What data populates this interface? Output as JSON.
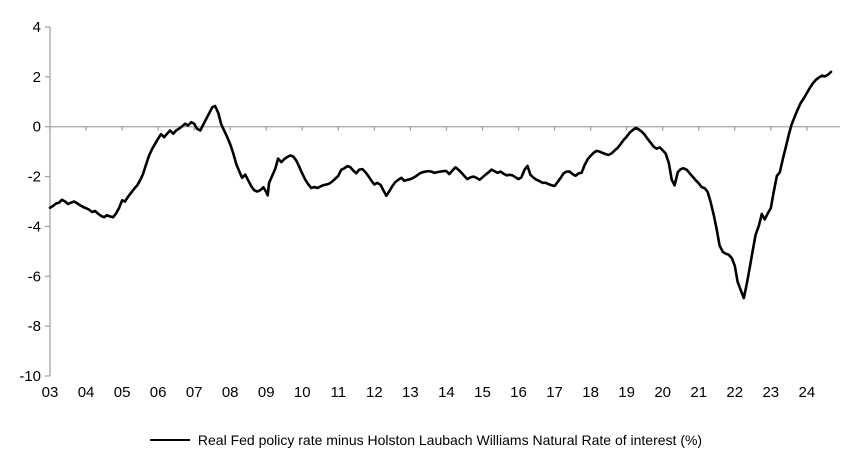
{
  "figure": {
    "background": "#ffffff",
    "legend": {
      "label": "Real Fed policy rate minus Holston Laubach Williams Natural Rate of interest (%)",
      "swatch_color": "#000000"
    }
  },
  "chart_data": {
    "type": "line",
    "title": "",
    "xlabel": "",
    "ylabel": "",
    "xlim": [
      2003,
      2024.92
    ],
    "ylim": [
      -10,
      4
    ],
    "y_ticks": [
      4,
      2,
      0,
      -2,
      -4,
      -6,
      -8,
      -10
    ],
    "x_tick_years": [
      2003,
      2004,
      2005,
      2006,
      2007,
      2008,
      2009,
      2010,
      2011,
      2012,
      2013,
      2014,
      2015,
      2016,
      2017,
      2018,
      2019,
      2020,
      2021,
      2022,
      2023,
      2024
    ],
    "x_tick_labels": [
      "03",
      "04",
      "05",
      "06",
      "07",
      "08",
      "09",
      "10",
      "11",
      "12",
      "13",
      "14",
      "15",
      "16",
      "17",
      "18",
      "19",
      "20",
      "21",
      "22",
      "23",
      "24"
    ],
    "grid": false,
    "zero_line": true,
    "axis_color": "#a6a6a6",
    "label_color": "#000000",
    "line_color": "#000000",
    "line_width": 2.6,
    "legend_position": "bottom-center",
    "series": [
      {
        "name": "Real Fed policy rate minus Holston Laubach Williams Natural Rate of interest (%)",
        "color": "#000000",
        "points": [
          [
            2003.0,
            -3.25
          ],
          [
            2003.08,
            -3.18
          ],
          [
            2003.17,
            -3.08
          ],
          [
            2003.25,
            -3.05
          ],
          [
            2003.33,
            -2.93
          ],
          [
            2003.42,
            -3.0
          ],
          [
            2003.5,
            -3.1
          ],
          [
            2003.58,
            -3.05
          ],
          [
            2003.67,
            -3.0
          ],
          [
            2003.75,
            -3.07
          ],
          [
            2003.83,
            -3.15
          ],
          [
            2003.92,
            -3.22
          ],
          [
            2004.0,
            -3.27
          ],
          [
            2004.08,
            -3.32
          ],
          [
            2004.17,
            -3.42
          ],
          [
            2004.25,
            -3.38
          ],
          [
            2004.33,
            -3.48
          ],
          [
            2004.42,
            -3.58
          ],
          [
            2004.5,
            -3.63
          ],
          [
            2004.58,
            -3.55
          ],
          [
            2004.67,
            -3.6
          ],
          [
            2004.75,
            -3.63
          ],
          [
            2004.83,
            -3.48
          ],
          [
            2004.92,
            -3.25
          ],
          [
            2005.0,
            -2.95
          ],
          [
            2005.08,
            -3.0
          ],
          [
            2005.17,
            -2.8
          ],
          [
            2005.25,
            -2.65
          ],
          [
            2005.33,
            -2.5
          ],
          [
            2005.42,
            -2.35
          ],
          [
            2005.5,
            -2.15
          ],
          [
            2005.58,
            -1.9
          ],
          [
            2005.67,
            -1.5
          ],
          [
            2005.75,
            -1.15
          ],
          [
            2005.83,
            -0.9
          ],
          [
            2005.92,
            -0.68
          ],
          [
            2006.0,
            -0.48
          ],
          [
            2006.08,
            -0.3
          ],
          [
            2006.17,
            -0.42
          ],
          [
            2006.25,
            -0.28
          ],
          [
            2006.33,
            -0.15
          ],
          [
            2006.42,
            -0.28
          ],
          [
            2006.5,
            -0.15
          ],
          [
            2006.58,
            -0.08
          ],
          [
            2006.67,
            0.02
          ],
          [
            2006.75,
            0.12
          ],
          [
            2006.83,
            0.05
          ],
          [
            2006.92,
            0.18
          ],
          [
            2007.0,
            0.12
          ],
          [
            2007.08,
            -0.08
          ],
          [
            2007.17,
            -0.15
          ],
          [
            2007.25,
            0.08
          ],
          [
            2007.33,
            0.3
          ],
          [
            2007.42,
            0.55
          ],
          [
            2007.5,
            0.78
          ],
          [
            2007.58,
            0.83
          ],
          [
            2007.67,
            0.55
          ],
          [
            2007.75,
            0.1
          ],
          [
            2007.83,
            -0.15
          ],
          [
            2007.92,
            -0.42
          ],
          [
            2008.0,
            -0.7
          ],
          [
            2008.08,
            -1.05
          ],
          [
            2008.17,
            -1.5
          ],
          [
            2008.25,
            -1.78
          ],
          [
            2008.33,
            -2.05
          ],
          [
            2008.42,
            -1.92
          ],
          [
            2008.5,
            -2.15
          ],
          [
            2008.58,
            -2.38
          ],
          [
            2008.67,
            -2.55
          ],
          [
            2008.75,
            -2.6
          ],
          [
            2008.83,
            -2.55
          ],
          [
            2008.92,
            -2.43
          ],
          [
            2009.0,
            -2.62
          ],
          [
            2009.04,
            -2.75
          ],
          [
            2009.08,
            -2.25
          ],
          [
            2009.17,
            -1.95
          ],
          [
            2009.25,
            -1.68
          ],
          [
            2009.33,
            -1.28
          ],
          [
            2009.42,
            -1.42
          ],
          [
            2009.5,
            -1.3
          ],
          [
            2009.58,
            -1.22
          ],
          [
            2009.67,
            -1.15
          ],
          [
            2009.75,
            -1.2
          ],
          [
            2009.83,
            -1.35
          ],
          [
            2009.92,
            -1.62
          ],
          [
            2010.0,
            -1.88
          ],
          [
            2010.08,
            -2.12
          ],
          [
            2010.17,
            -2.32
          ],
          [
            2010.25,
            -2.46
          ],
          [
            2010.33,
            -2.42
          ],
          [
            2010.42,
            -2.46
          ],
          [
            2010.5,
            -2.4
          ],
          [
            2010.58,
            -2.35
          ],
          [
            2010.67,
            -2.32
          ],
          [
            2010.75,
            -2.28
          ],
          [
            2010.83,
            -2.2
          ],
          [
            2010.92,
            -2.08
          ],
          [
            2011.0,
            -1.97
          ],
          [
            2011.08,
            -1.73
          ],
          [
            2011.17,
            -1.67
          ],
          [
            2011.25,
            -1.58
          ],
          [
            2011.33,
            -1.62
          ],
          [
            2011.42,
            -1.77
          ],
          [
            2011.5,
            -1.87
          ],
          [
            2011.58,
            -1.72
          ],
          [
            2011.67,
            -1.7
          ],
          [
            2011.75,
            -1.82
          ],
          [
            2011.83,
            -1.97
          ],
          [
            2011.92,
            -2.17
          ],
          [
            2012.0,
            -2.32
          ],
          [
            2012.08,
            -2.25
          ],
          [
            2012.17,
            -2.33
          ],
          [
            2012.25,
            -2.55
          ],
          [
            2012.33,
            -2.77
          ],
          [
            2012.42,
            -2.58
          ],
          [
            2012.5,
            -2.38
          ],
          [
            2012.58,
            -2.22
          ],
          [
            2012.67,
            -2.12
          ],
          [
            2012.75,
            -2.05
          ],
          [
            2012.83,
            -2.17
          ],
          [
            2012.92,
            -2.13
          ],
          [
            2013.0,
            -2.1
          ],
          [
            2013.08,
            -2.05
          ],
          [
            2013.17,
            -1.97
          ],
          [
            2013.25,
            -1.88
          ],
          [
            2013.33,
            -1.83
          ],
          [
            2013.42,
            -1.8
          ],
          [
            2013.5,
            -1.78
          ],
          [
            2013.58,
            -1.8
          ],
          [
            2013.67,
            -1.85
          ],
          [
            2013.75,
            -1.82
          ],
          [
            2013.83,
            -1.8
          ],
          [
            2013.92,
            -1.78
          ],
          [
            2014.0,
            -1.78
          ],
          [
            2014.08,
            -1.9
          ],
          [
            2014.17,
            -1.75
          ],
          [
            2014.25,
            -1.63
          ],
          [
            2014.33,
            -1.72
          ],
          [
            2014.42,
            -1.85
          ],
          [
            2014.5,
            -1.98
          ],
          [
            2014.58,
            -2.1
          ],
          [
            2014.67,
            -2.03
          ],
          [
            2014.75,
            -2.0
          ],
          [
            2014.83,
            -2.05
          ],
          [
            2014.92,
            -2.13
          ],
          [
            2015.0,
            -2.03
          ],
          [
            2015.08,
            -1.93
          ],
          [
            2015.17,
            -1.83
          ],
          [
            2015.25,
            -1.72
          ],
          [
            2015.33,
            -1.78
          ],
          [
            2015.42,
            -1.85
          ],
          [
            2015.5,
            -1.8
          ],
          [
            2015.58,
            -1.88
          ],
          [
            2015.67,
            -1.95
          ],
          [
            2015.75,
            -1.93
          ],
          [
            2015.83,
            -1.95
          ],
          [
            2015.92,
            -2.03
          ],
          [
            2016.0,
            -2.1
          ],
          [
            2016.08,
            -2.03
          ],
          [
            2016.17,
            -1.72
          ],
          [
            2016.25,
            -1.57
          ],
          [
            2016.33,
            -1.93
          ],
          [
            2016.42,
            -2.05
          ],
          [
            2016.5,
            -2.13
          ],
          [
            2016.58,
            -2.18
          ],
          [
            2016.67,
            -2.25
          ],
          [
            2016.75,
            -2.25
          ],
          [
            2016.83,
            -2.3
          ],
          [
            2016.92,
            -2.35
          ],
          [
            2017.0,
            -2.38
          ],
          [
            2017.08,
            -2.23
          ],
          [
            2017.17,
            -2.05
          ],
          [
            2017.25,
            -1.87
          ],
          [
            2017.33,
            -1.8
          ],
          [
            2017.42,
            -1.8
          ],
          [
            2017.5,
            -1.9
          ],
          [
            2017.58,
            -1.97
          ],
          [
            2017.67,
            -1.87
          ],
          [
            2017.75,
            -1.85
          ],
          [
            2017.83,
            -1.55
          ],
          [
            2017.92,
            -1.3
          ],
          [
            2018.0,
            -1.17
          ],
          [
            2018.08,
            -1.05
          ],
          [
            2018.17,
            -0.97
          ],
          [
            2018.25,
            -1.0
          ],
          [
            2018.33,
            -1.05
          ],
          [
            2018.42,
            -1.1
          ],
          [
            2018.5,
            -1.13
          ],
          [
            2018.58,
            -1.07
          ],
          [
            2018.67,
            -0.95
          ],
          [
            2018.75,
            -0.85
          ],
          [
            2018.83,
            -0.7
          ],
          [
            2018.92,
            -0.52
          ],
          [
            2019.0,
            -0.4
          ],
          [
            2019.08,
            -0.25
          ],
          [
            2019.17,
            -0.13
          ],
          [
            2019.25,
            -0.05
          ],
          [
            2019.33,
            -0.1
          ],
          [
            2019.42,
            -0.2
          ],
          [
            2019.5,
            -0.32
          ],
          [
            2019.58,
            -0.48
          ],
          [
            2019.67,
            -0.65
          ],
          [
            2019.75,
            -0.8
          ],
          [
            2019.83,
            -0.88
          ],
          [
            2019.92,
            -0.83
          ],
          [
            2020.0,
            -0.95
          ],
          [
            2020.08,
            -1.07
          ],
          [
            2020.17,
            -1.45
          ],
          [
            2020.25,
            -2.12
          ],
          [
            2020.33,
            -2.35
          ],
          [
            2020.42,
            -1.82
          ],
          [
            2020.5,
            -1.7
          ],
          [
            2020.58,
            -1.67
          ],
          [
            2020.67,
            -1.73
          ],
          [
            2020.75,
            -1.87
          ],
          [
            2020.83,
            -2.0
          ],
          [
            2020.92,
            -2.15
          ],
          [
            2021.0,
            -2.27
          ],
          [
            2021.08,
            -2.42
          ],
          [
            2021.17,
            -2.47
          ],
          [
            2021.25,
            -2.62
          ],
          [
            2021.33,
            -3.02
          ],
          [
            2021.42,
            -3.57
          ],
          [
            2021.5,
            -4.12
          ],
          [
            2021.58,
            -4.77
          ],
          [
            2021.67,
            -5.02
          ],
          [
            2021.75,
            -5.1
          ],
          [
            2021.83,
            -5.13
          ],
          [
            2021.92,
            -5.28
          ],
          [
            2022.0,
            -5.58
          ],
          [
            2022.08,
            -6.22
          ],
          [
            2022.17,
            -6.57
          ],
          [
            2022.25,
            -6.87
          ],
          [
            2022.33,
            -6.32
          ],
          [
            2022.42,
            -5.62
          ],
          [
            2022.5,
            -4.95
          ],
          [
            2022.58,
            -4.32
          ],
          [
            2022.67,
            -3.97
          ],
          [
            2022.75,
            -3.5
          ],
          [
            2022.83,
            -3.72
          ],
          [
            2022.92,
            -3.47
          ],
          [
            2023.0,
            -3.27
          ],
          [
            2023.08,
            -2.62
          ],
          [
            2023.17,
            -1.97
          ],
          [
            2023.25,
            -1.83
          ],
          [
            2023.33,
            -1.32
          ],
          [
            2023.42,
            -0.8
          ],
          [
            2023.5,
            -0.32
          ],
          [
            2023.58,
            0.1
          ],
          [
            2023.67,
            0.42
          ],
          [
            2023.75,
            0.7
          ],
          [
            2023.83,
            0.95
          ],
          [
            2023.92,
            1.15
          ],
          [
            2024.0,
            1.35
          ],
          [
            2024.08,
            1.55
          ],
          [
            2024.17,
            1.75
          ],
          [
            2024.25,
            1.88
          ],
          [
            2024.33,
            1.97
          ],
          [
            2024.42,
            2.05
          ],
          [
            2024.5,
            2.02
          ],
          [
            2024.58,
            2.08
          ],
          [
            2024.67,
            2.2
          ]
        ]
      }
    ]
  }
}
